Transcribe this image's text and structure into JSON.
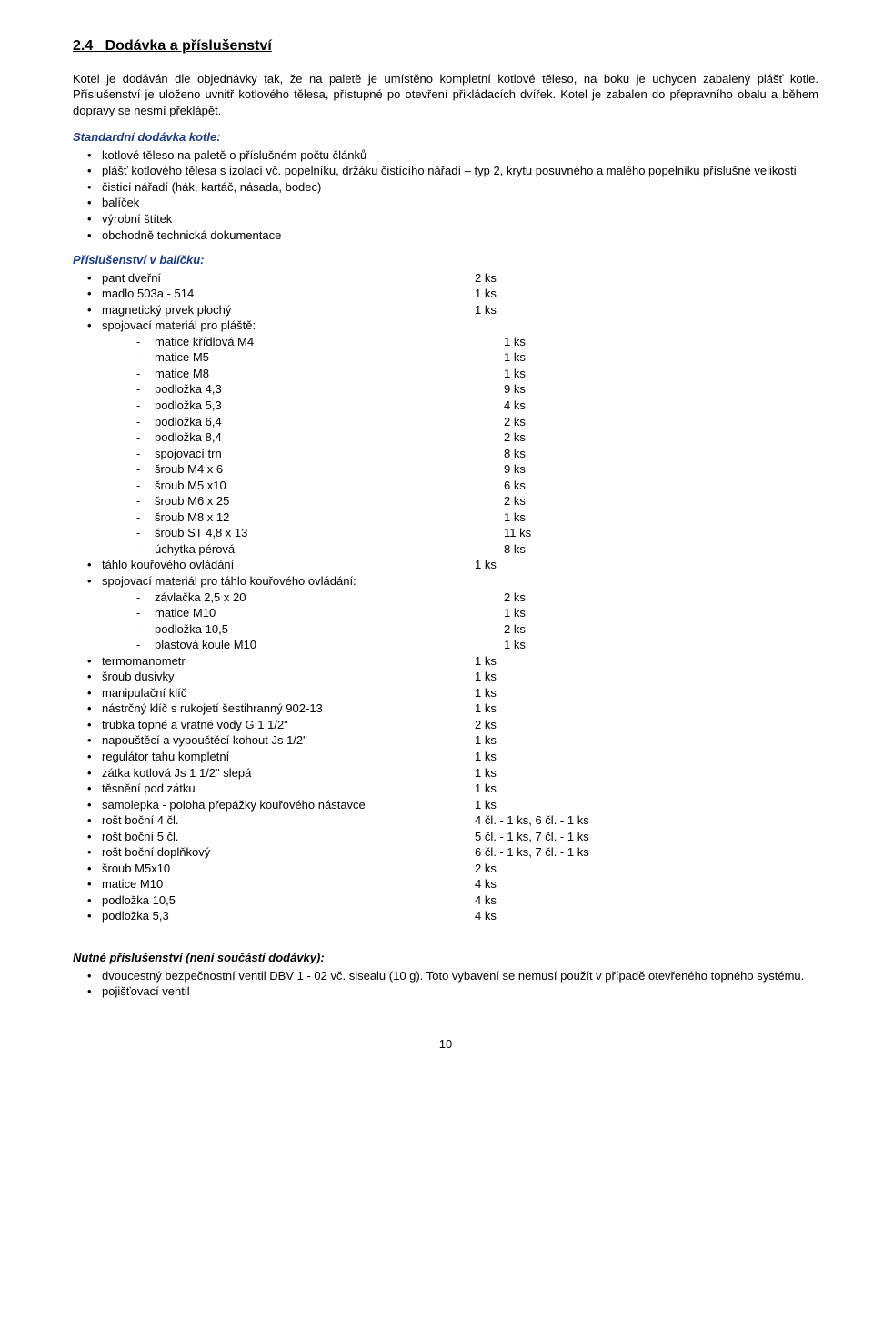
{
  "section": {
    "number": "2.4",
    "title": "Dodávka a příslušenství"
  },
  "para1": "Kotel je dodáván dle objednávky tak, že na paletě je umístěno kompletní kotlové těleso, na boku je uchycen zabalený plášť kotle. Příslušenství je uloženo uvnitř kotlového tělesa, přístupné po otevření přikládacích dvířek. Kotel je zabalen do přepravního obalu a během dopravy se nesmí překlápět.",
  "standardHeading": "Standardní dodávka kotle:",
  "standardItems": [
    "kotlové těleso na paletě o příslušném počtu článků",
    "plášť kotlového tělesa s izolací vč. popelníku, držáku čistícího nářadí – typ 2, krytu posuvného a malého popelníku příslušné velikosti",
    "čisticí nářadí (hák, kartáč, násada, bodec)",
    "balíček",
    "výrobní štítek",
    "obchodně technická dokumentace"
  ],
  "accessHeading": "Příslušenství v balíčku:",
  "accessories": [
    {
      "label": "pant dveřní",
      "qty": "2 ks"
    },
    {
      "label": "madlo 503a - 514",
      "qty": "1 ks"
    },
    {
      "label": "magnetický prvek plochý",
      "qty": "1 ks"
    },
    {
      "label": "spojovací materiál pro pláště:",
      "qty": "",
      "sub": [
        {
          "label": "matice křídlová M4",
          "qty": "1 ks"
        },
        {
          "label": "matice M5",
          "qty": "1 ks"
        },
        {
          "label": "matice M8",
          "qty": "1 ks"
        },
        {
          "label": "podložka 4,3",
          "qty": "9 ks"
        },
        {
          "label": "podložka 5,3",
          "qty": "4 ks"
        },
        {
          "label": "podložka 6,4",
          "qty": "2 ks"
        },
        {
          "label": "podložka 8,4",
          "qty": "2 ks"
        },
        {
          "label": "spojovací trn",
          "qty": "8 ks"
        },
        {
          "label": "šroub M4 x 6",
          "qty": "9 ks"
        },
        {
          "label": "šroub M5 x10",
          "qty": "6 ks"
        },
        {
          "label": "šroub M6 x 25",
          "qty": "2 ks"
        },
        {
          "label": "šroub M8 x 12",
          "qty": "1 ks"
        },
        {
          "label": "šroub ST 4,8 x 13",
          "qty": "11 ks"
        },
        {
          "label": "úchytka pérová",
          "qty": "8 ks"
        }
      ]
    },
    {
      "label": "táhlo kouřového ovládání",
      "qty": "1 ks"
    },
    {
      "label": "spojovací materiál pro táhlo kouřového ovládání:",
      "qty": "",
      "sub": [
        {
          "label": "závlačka 2,5 x 20",
          "qty": "2 ks"
        },
        {
          "label": "matice M10",
          "qty": "1 ks"
        },
        {
          "label": "podložka 10,5",
          "qty": "2 ks"
        },
        {
          "label": "plastová koule M10",
          "qty": "1 ks"
        }
      ]
    },
    {
      "label": "termomanometr",
      "qty": "1 ks"
    },
    {
      "label": "šroub dusivky",
      "qty": "1 ks"
    },
    {
      "label": "manipulační klíč",
      "qty": "1 ks"
    },
    {
      "label": "nástrčný klíč s rukojetí šestihranný 902-13",
      "qty": "1 ks"
    },
    {
      "label": "trubka topné a vratné vody G 1 1/2\"",
      "qty": "2 ks"
    },
    {
      "label": "napouštěcí a vypouštěcí kohout Js 1/2\"",
      "qty": "1 ks"
    },
    {
      "label": "regulátor tahu kompletní",
      "qty": "1 ks"
    },
    {
      "label": "zátka kotlová Js 1 1/2\" slepá",
      "qty": "1 ks"
    },
    {
      "label": "těsnění pod zátku",
      "qty": "1 ks"
    },
    {
      "label": "samolepka - poloha přepážky kouřového nástavce",
      "qty": "1 ks"
    },
    {
      "label": "rošt boční 4 čl.",
      "qty": "4 čl. - 1 ks, 6 čl. - 1 ks"
    },
    {
      "label": "rošt boční 5 čl.",
      "qty": "5 čl. - 1 ks, 7 čl. - 1 ks"
    },
    {
      "label": "rošt boční doplňkový",
      "qty": "6 čl. - 1 ks, 7 čl. - 1 ks"
    },
    {
      "label": "šroub M5x10",
      "qty": "2 ks"
    },
    {
      "label": "matice M10",
      "qty": "4 ks"
    },
    {
      "label": "podložka 10,5",
      "qty": "4 ks"
    },
    {
      "label": "podložka 5,3",
      "qty": "4 ks"
    }
  ],
  "requiredHeading": "Nutné příslušenství (není součástí dodávky):",
  "requiredItems": [
    "dvoucestný bezpečnostní ventil DBV 1 - 02 vč. sisealu (10 g). Toto vybavení se nemusí použít v případě otevřeného topného systému.",
    "pojišťovací ventil"
  ],
  "pageNumber": "10",
  "colors": {
    "subhead": "#1a3a8a",
    "text": "#000000",
    "background": "#ffffff"
  }
}
